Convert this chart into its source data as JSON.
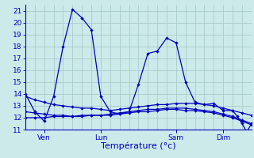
{
  "background_color": "#cceaea",
  "grid_color": "#aacccc",
  "line_color": "#0000bb",
  "xlabel": "Température (°c)",
  "xlabel_fontsize": 8,
  "tick_label_fontsize": 6.5,
  "xlim": [
    0,
    96
  ],
  "ylim": [
    11,
    21.5
  ],
  "yticks": [
    11,
    12,
    13,
    14,
    15,
    16,
    17,
    18,
    19,
    20,
    21
  ],
  "day_ticks": [
    {
      "x": 8,
      "label": "Ven"
    },
    {
      "x": 32,
      "label": "Lun"
    },
    {
      "x": 64,
      "label": "Sam"
    },
    {
      "x": 84,
      "label": "Dim"
    }
  ],
  "series": [
    [
      0,
      14.0,
      4,
      12.5,
      8,
      11.7,
      12,
      13.8,
      16,
      18.0,
      20,
      21.1,
      24,
      20.4,
      28,
      19.4,
      32,
      13.8,
      36,
      12.5,
      40,
      12.3,
      44,
      12.5,
      48,
      14.8,
      52,
      17.4,
      56,
      17.6,
      60,
      18.7,
      64,
      18.3,
      68,
      15.0,
      72,
      13.3,
      76,
      13.1,
      80,
      13.2,
      84,
      12.6,
      88,
      12.6,
      90,
      12.1,
      92,
      11.5,
      94,
      10.8,
      96,
      11.5
    ],
    [
      0,
      13.8,
      4,
      13.5,
      8,
      13.3,
      12,
      13.1,
      16,
      13.0,
      20,
      12.9,
      24,
      12.8,
      28,
      12.8,
      32,
      12.7,
      36,
      12.6,
      40,
      12.7,
      44,
      12.8,
      48,
      12.9,
      52,
      13.0,
      56,
      13.1,
      60,
      13.1,
      64,
      13.2,
      68,
      13.2,
      72,
      13.2,
      76,
      13.1,
      80,
      13.0,
      84,
      12.8,
      88,
      12.6,
      92,
      12.4,
      96,
      12.2
    ],
    [
      0,
      12.5,
      4,
      12.4,
      8,
      12.3,
      12,
      12.2,
      16,
      12.2,
      20,
      12.1,
      24,
      12.1,
      28,
      12.2,
      32,
      12.2,
      36,
      12.2,
      40,
      12.3,
      44,
      12.4,
      48,
      12.5,
      52,
      12.5,
      56,
      12.6,
      60,
      12.7,
      64,
      12.7,
      68,
      12.6,
      72,
      12.6,
      76,
      12.5,
      80,
      12.4,
      84,
      12.2,
      88,
      12.0,
      92,
      11.7,
      96,
      11.4
    ],
    [
      0,
      12.0,
      4,
      12.0,
      8,
      12.0,
      12,
      12.1,
      16,
      12.1,
      20,
      12.1,
      24,
      12.2,
      28,
      12.2,
      32,
      12.2,
      36,
      12.3,
      40,
      12.4,
      44,
      12.5,
      48,
      12.6,
      52,
      12.7,
      56,
      12.7,
      60,
      12.8,
      64,
      12.8,
      68,
      12.8,
      72,
      12.7,
      76,
      12.6,
      80,
      12.5,
      84,
      12.3,
      88,
      12.1,
      92,
      11.8,
      96,
      11.5
    ]
  ]
}
